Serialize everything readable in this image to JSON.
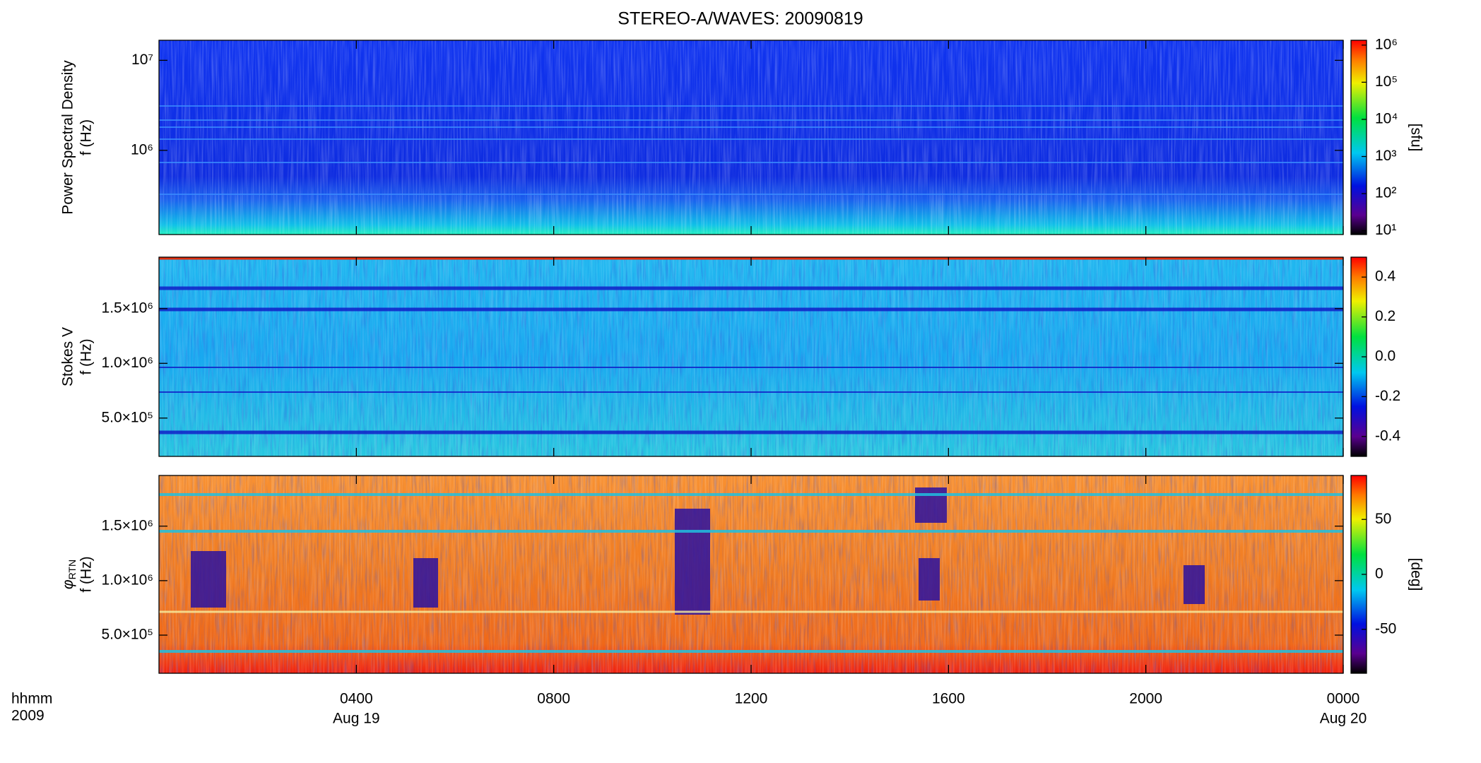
{
  "chart_data": {
    "type": "heatmap",
    "title": "STEREO-A/WAVES: 20090819",
    "x_unit_label": "hhmm",
    "year_label": "2009",
    "xlim": [
      0,
      24
    ],
    "xticks": [
      {
        "value": 4,
        "label": "0400"
      },
      {
        "value": 8,
        "label": "0800"
      },
      {
        "value": 12,
        "label": "1200"
      },
      {
        "value": 16,
        "label": "1600"
      },
      {
        "value": 20,
        "label": "2000"
      },
      {
        "value": 24,
        "label": "0000"
      }
    ],
    "date_labels": [
      {
        "value": 4,
        "label": "Aug 19"
      },
      {
        "value": 24,
        "label": "Aug 20"
      }
    ],
    "panels": [
      {
        "ylabel": "Power Spectral Density",
        "ylabel_unit": "f (Hz)",
        "ylog": true,
        "ylim": [
          116000,
          16700000
        ],
        "yticks": [
          {
            "value": 1000000,
            "label": "10⁶"
          },
          {
            "value": 10000000,
            "label": "10⁷"
          }
        ],
        "colorbar_log": true,
        "clim": [
          7.9,
          1350000
        ],
        "colorbar_label": "[sfu]",
        "cticks": [
          {
            "value": 10,
            "label": "10¹"
          },
          {
            "value": 100,
            "label": "10²"
          },
          {
            "value": 1000,
            "label": "10³"
          },
          {
            "value": 10000,
            "label": "10⁴"
          },
          {
            "value": 100000,
            "label": "10⁵"
          },
          {
            "value": 1000000,
            "label": "10⁶"
          }
        ]
      },
      {
        "ylabel": "Stokes V",
        "ylabel_unit": "f (Hz)",
        "ylog": false,
        "ylim": [
          150000,
          1970000
        ],
        "yticks": [
          {
            "value": 500000,
            "label": "5.0×10⁵"
          },
          {
            "value": 1000000,
            "label": "1.0×10⁶"
          },
          {
            "value": 1500000,
            "label": "1.5×10⁶"
          }
        ],
        "colorbar_log": false,
        "clim": [
          -0.5,
          0.5
        ],
        "cticks": [
          -0.4,
          -0.2,
          {
            "value": 0,
            "label": "0.0"
          },
          0.2,
          0.4
        ]
      },
      {
        "ylabel_symbol": "φ",
        "ylabel_subscript": "RTN",
        "ylabel_unit": "f (Hz)",
        "ylog": false,
        "ylim": [
          150000,
          1965000
        ],
        "yticks": [
          {
            "value": 500000,
            "label": "5.0×10⁵"
          },
          {
            "value": 1000000,
            "label": "1.0×10⁶"
          },
          {
            "value": 1500000,
            "label": "1.5×10⁶"
          }
        ],
        "colorbar_log": false,
        "clim": [
          -90,
          90
        ],
        "colorbar_label": "[deg]",
        "cticks": [
          -50,
          0,
          50
        ]
      }
    ]
  }
}
